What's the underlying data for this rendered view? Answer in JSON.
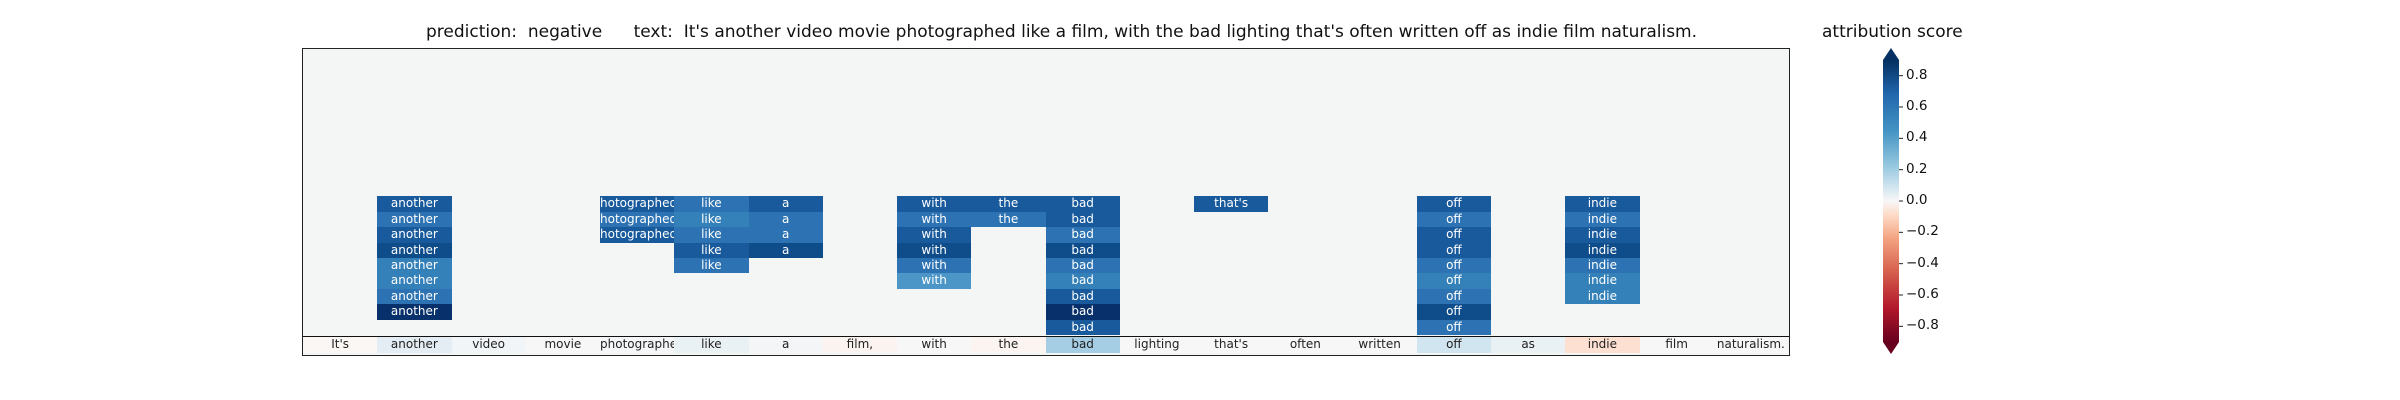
{
  "header": {
    "prediction_label": "prediction:",
    "prediction_value": "negative",
    "text_label": "text:",
    "text_value": "It's another video movie photographed like a film, with the bad lighting that's often written off as indie film naturalism."
  },
  "colorbar": {
    "title": "attribution score",
    "ticks": [
      "0.8",
      "0.6",
      "0.4",
      "0.2",
      "0.0",
      "−0.2",
      "−0.4",
      "−0.6",
      "−0.8"
    ],
    "tick_values": [
      0.8,
      0.6,
      0.4,
      0.2,
      0.0,
      -0.2,
      -0.4,
      -0.6,
      -0.8
    ],
    "colors": {
      "top": "#053061",
      "mid": "#f7f7f7",
      "bottom": "#67001f"
    }
  },
  "tokens": [
    "It's",
    "another",
    "video",
    "movie",
    "photographed",
    "like",
    "a",
    "film,",
    "with",
    "the",
    "bad",
    "lighting",
    "that's",
    "often",
    "written",
    "off",
    "as",
    "indie",
    "film",
    "naturalism."
  ],
  "token_row_colors": [
    "#fbf7f4",
    "#e3edf3",
    "#f2f5f7",
    "#f7f7f7",
    "#f5f6f7",
    "#eaf1f5",
    "#f3f5f7",
    "#fbf3ef",
    "#f7f7f7",
    "#fbf4f0",
    "#a5cde3",
    "#f7f7f7",
    "#f7f7f7",
    "#f7f7f7",
    "#f7f7f7",
    "#d1e5f0",
    "#eaf1f5",
    "#fde0d1",
    "#f7f7f7",
    "#f7f7f7"
  ],
  "cell_labels": {
    "another": "another",
    "photographed": "hotographed",
    "like": "like",
    "a": "a",
    "with": "with",
    "the": "the",
    "bad": "bad",
    "thats": "that's",
    "off": "off",
    "indie": "indie"
  },
  "stacks": [
    {
      "col": 1,
      "key": "another",
      "colors": [
        "#185a9c",
        "#2d73b3",
        "#185a9c",
        "#0f4c8a",
        "#3480b9",
        "#3480b9",
        "#2d73b3",
        "#08306b"
      ]
    },
    {
      "col": 4,
      "key": "photographed",
      "colors": [
        "#185a9c",
        "#2d73b3",
        "#185a9c"
      ]
    },
    {
      "col": 5,
      "key": "like",
      "colors": [
        "#2d73b3",
        "#3480b9",
        "#2d73b3",
        "#185a9c",
        "#2d73b3"
      ]
    },
    {
      "col": 6,
      "key": "a",
      "colors": [
        "#185a9c",
        "#2d73b3",
        "#2d73b3",
        "#0f4c8a"
      ]
    },
    {
      "col": 8,
      "key": "with",
      "colors": [
        "#185a9c",
        "#2d73b3",
        "#185a9c",
        "#0f4c8a",
        "#2d73b3",
        "#4b96c7"
      ]
    },
    {
      "col": 9,
      "key": "the",
      "colors": [
        "#185a9c",
        "#2d73b3"
      ]
    },
    {
      "col": 10,
      "key": "bad",
      "colors": [
        "#185a9c",
        "#185a9c",
        "#2d73b3",
        "#0f4c8a",
        "#2d73b3",
        "#3480b9",
        "#185a9c",
        "#08306b",
        "#185a9c"
      ]
    },
    {
      "col": 12,
      "key": "thats",
      "colors": [
        "#185a9c"
      ]
    },
    {
      "col": 15,
      "key": "off",
      "colors": [
        "#185a9c",
        "#2d73b3",
        "#185a9c",
        "#185a9c",
        "#2d73b3",
        "#3480b9",
        "#2d73b3",
        "#0f4c8a",
        "#2d73b3"
      ]
    },
    {
      "col": 17,
      "key": "indie",
      "colors": [
        "#185a9c",
        "#2d73b3",
        "#185a9c",
        "#0f4c8a",
        "#2d73b3",
        "#3480b9",
        "#3480b9"
      ]
    }
  ]
}
